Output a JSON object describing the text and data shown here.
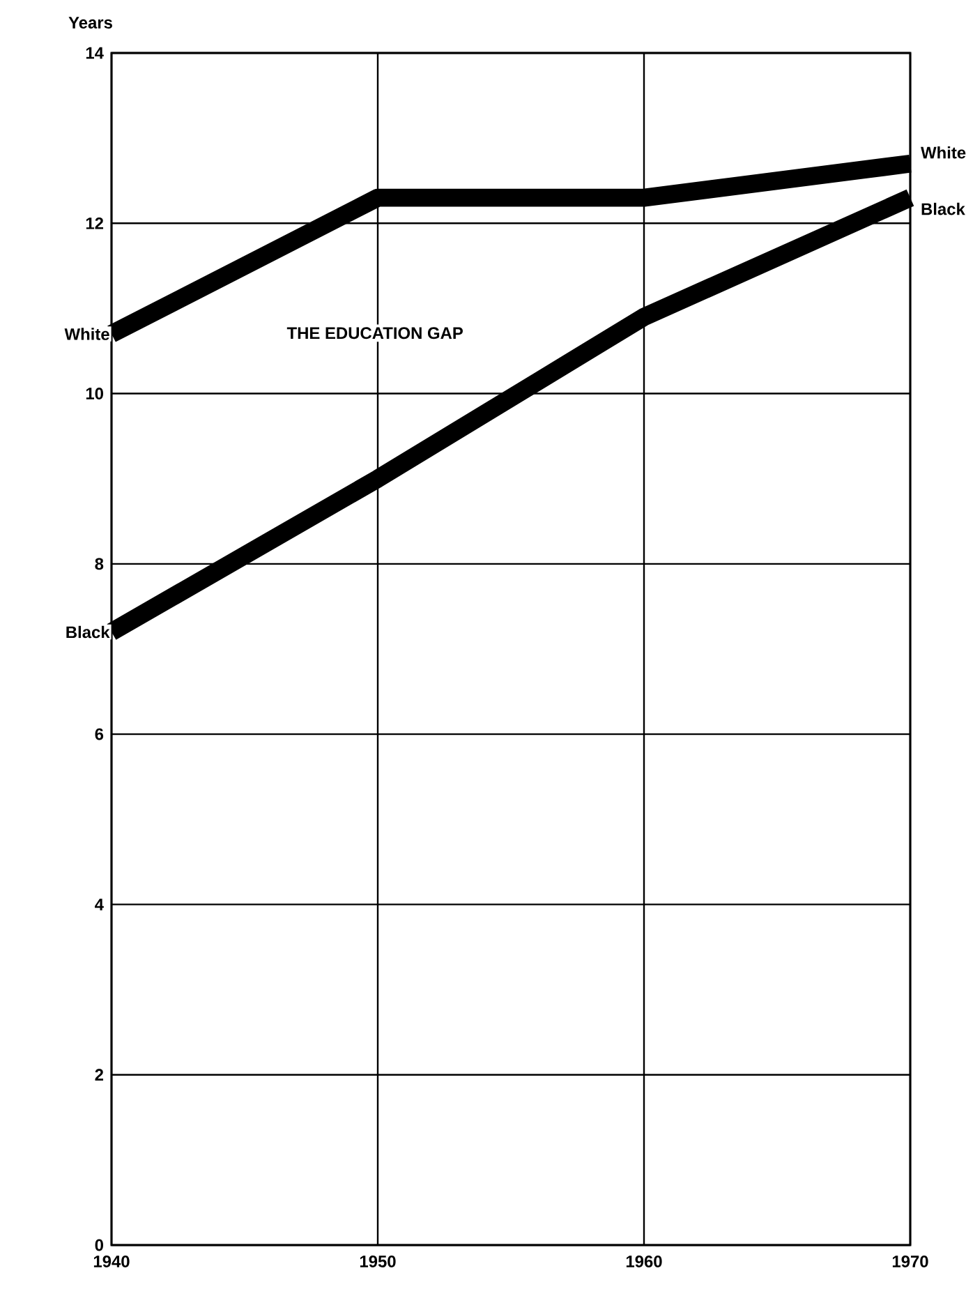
{
  "chart_data": {
    "type": "line",
    "title": "THE EDUCATION GAP",
    "ylabel": "Years",
    "x": [
      1940,
      1950,
      1960,
      1970
    ],
    "series": [
      {
        "name": "White",
        "color": "#000000",
        "values": [
          10.7,
          12.3,
          12.3,
          12.7
        ]
      },
      {
        "name": "Black",
        "color": "#000000",
        "values": [
          7.2,
          9.0,
          10.9,
          12.3
        ]
      }
    ],
    "xlim": [
      1940,
      1970
    ],
    "ylim": [
      0,
      14
    ],
    "xticks": [
      1940,
      1950,
      1960,
      1970
    ],
    "yticks": [
      0,
      2,
      4,
      6,
      8,
      10,
      12,
      14
    ],
    "grid": true,
    "marker": "none",
    "line_style": "solid"
  }
}
